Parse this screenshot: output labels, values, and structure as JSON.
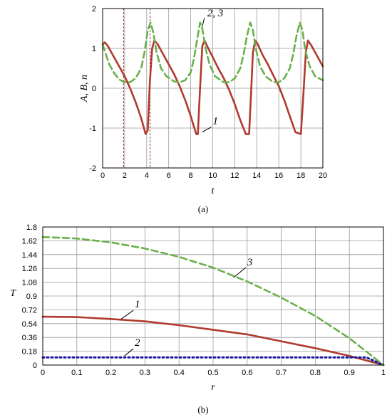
{
  "chart_data": [
    {
      "panel": "(a)",
      "type": "line",
      "xlabel": "t",
      "ylabel": "A, B, n",
      "xlim": [
        0,
        20
      ],
      "ylim": [
        -2,
        2
      ],
      "x_ticks": [
        "0",
        "2",
        "4",
        "6",
        "8",
        "10",
        "12",
        "14",
        "16",
        "18",
        "20"
      ],
      "y_ticks": [
        "2",
        "1",
        "0",
        "-1",
        "-2"
      ],
      "grid": true,
      "series": [
        {
          "name": "1",
          "color": "#b03a2e",
          "style": "solid",
          "x": [
            0,
            0.2,
            0.5,
            1,
            1.5,
            2,
            2.5,
            3,
            3.5,
            3.9,
            4.1,
            4.3,
            4.5,
            4.7,
            5,
            5.5,
            6,
            6.5,
            7,
            7.5,
            8,
            8.5,
            8.65,
            8.85,
            9.05,
            9.25,
            9.5,
            10,
            10.5,
            11,
            11.5,
            12,
            12.5,
            13,
            13.3,
            13.45,
            13.65,
            13.85,
            14.1,
            14.5,
            15,
            15.5,
            16,
            16.5,
            17,
            17.5,
            18,
            18.2,
            18.45,
            18.65,
            19,
            19.5,
            20
          ],
          "y": [
            1.1,
            1.15,
            1.05,
            0.8,
            0.55,
            0.3,
            0.0,
            -0.35,
            -0.75,
            -1.15,
            -1.05,
            0.2,
            1.0,
            1.2,
            1.1,
            0.85,
            0.6,
            0.35,
            0.05,
            -0.3,
            -0.7,
            -1.15,
            -1.15,
            0.0,
            1.05,
            1.2,
            1.05,
            0.78,
            0.5,
            0.25,
            -0.05,
            -0.4,
            -0.8,
            -1.15,
            -1.15,
            -0.3,
            0.9,
            1.2,
            1.1,
            0.85,
            0.6,
            0.32,
            0.05,
            -0.3,
            -0.7,
            -1.1,
            -1.15,
            -0.3,
            0.9,
            1.2,
            1.05,
            0.8,
            0.55
          ]
        },
        {
          "name": "2, 3",
          "color": "#6ab04c",
          "style": "dashed",
          "x": [
            0,
            0.3,
            0.6,
            1,
            1.5,
            2,
            2.5,
            3,
            3.5,
            3.8,
            4.1,
            4.35,
            4.6,
            4.9,
            5.3,
            5.8,
            6.5,
            7,
            7.5,
            8,
            8.3,
            8.6,
            8.85,
            9.05,
            9.35,
            9.7,
            10.2,
            11,
            11.5,
            12,
            12.5,
            12.8,
            13.1,
            13.4,
            13.65,
            13.9,
            14.3,
            14.8,
            15.5,
            16,
            16.5,
            17,
            17.3,
            17.6,
            17.9,
            18.15,
            18.4,
            18.8,
            19.3,
            20
          ],
          "y": [
            1.1,
            0.85,
            0.6,
            0.4,
            0.22,
            0.15,
            0.15,
            0.25,
            0.5,
            0.9,
            1.45,
            1.65,
            1.4,
            0.9,
            0.5,
            0.3,
            0.17,
            0.15,
            0.2,
            0.4,
            0.75,
            1.25,
            1.65,
            1.5,
            1.0,
            0.6,
            0.3,
            0.15,
            0.15,
            0.25,
            0.5,
            0.85,
            1.3,
            1.65,
            1.45,
            1.0,
            0.55,
            0.3,
            0.15,
            0.15,
            0.25,
            0.5,
            0.85,
            1.3,
            1.65,
            1.45,
            0.95,
            0.55,
            0.3,
            0.2
          ]
        }
      ],
      "annotations": [
        {
          "text": "2, 3",
          "x": 9.5,
          "y": 1.8
        },
        {
          "text": "1",
          "x": 10.0,
          "y": -0.9
        }
      ],
      "vertical_markers": [
        1.9,
        4.3
      ]
    },
    {
      "panel": "(b)",
      "type": "line",
      "xlabel": "r",
      "ylabel": "T",
      "xlim": [
        0,
        1
      ],
      "ylim": [
        0,
        1.8
      ],
      "x_ticks": [
        "0",
        "0.1",
        "0.2",
        "0.3",
        "0.4",
        "0.5",
        "0.6",
        "0.7",
        "0.8",
        "0.9",
        "1"
      ],
      "y_ticks": [
        "1.8",
        "1.62",
        "1.44",
        "1.26",
        "1.08",
        "0.9",
        "0.72",
        "0.54",
        "0.36",
        "0.18",
        "0"
      ],
      "grid": true,
      "series": [
        {
          "name": "1",
          "color": "#b03a2e",
          "style": "solid",
          "x": [
            0,
            0.1,
            0.2,
            0.3,
            0.4,
            0.5,
            0.6,
            0.7,
            0.8,
            0.9,
            1.0
          ],
          "y": [
            0.63,
            0.625,
            0.6,
            0.57,
            0.52,
            0.46,
            0.4,
            0.31,
            0.22,
            0.12,
            0.0
          ]
        },
        {
          "name": "2",
          "color": "#1a1a9e",
          "style": "dotted",
          "x": [
            0,
            0.1,
            0.2,
            0.3,
            0.4,
            0.5,
            0.6,
            0.7,
            0.8,
            0.9,
            0.95,
            1.0
          ],
          "y": [
            0.1,
            0.1,
            0.1,
            0.1,
            0.1,
            0.1,
            0.1,
            0.1,
            0.1,
            0.1,
            0.1,
            0.0
          ]
        },
        {
          "name": "3",
          "color": "#6ab04c",
          "style": "dashed",
          "x": [
            0,
            0.1,
            0.2,
            0.3,
            0.4,
            0.5,
            0.6,
            0.7,
            0.8,
            0.9,
            1.0
          ],
          "y": [
            1.67,
            1.65,
            1.6,
            1.52,
            1.41,
            1.27,
            1.09,
            0.88,
            0.64,
            0.35,
            0.0
          ]
        }
      ],
      "annotations": [
        {
          "text": "3",
          "x": 0.6,
          "y": 1.3
        },
        {
          "text": "1",
          "x": 0.27,
          "y": 0.75
        },
        {
          "text": "2",
          "x": 0.27,
          "y": 0.25
        }
      ]
    }
  ],
  "captions": {
    "a": "(a)",
    "b": "(b)"
  }
}
